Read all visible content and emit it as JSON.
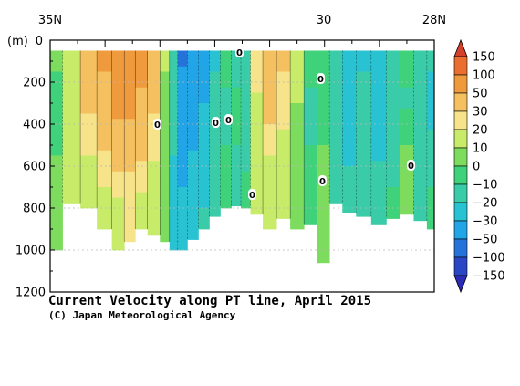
{
  "chart_data": {
    "type": "heatmap",
    "title": "Current Velocity along PT line, April 2015",
    "credit": "(C) Japan Meteorological Agency",
    "top_axis_labels": [
      "35N",
      "30",
      "28N"
    ],
    "y_unit": "(m)",
    "y_ticks": [
      0,
      200,
      400,
      600,
      800,
      1000,
      1200
    ],
    "ylim": [
      0,
      1200
    ],
    "colorbar": {
      "levels": [
        150,
        100,
        50,
        30,
        20,
        10,
        0,
        -10,
        -20,
        -30,
        -50,
        -100,
        -150
      ],
      "colors": [
        "#d5402a",
        "#ea6e2f",
        "#f09a3e",
        "#f4c060",
        "#f7e389",
        "#c8ec6a",
        "#7ddc5e",
        "#3fd27a",
        "#3acca8",
        "#28c2d2",
        "#21a5e6",
        "#2572d8",
        "#2a46c4",
        "#2a2ab4"
      ]
    },
    "contour_labels": [
      "0",
      "0",
      "0",
      "0",
      "0",
      "0",
      "0",
      "0"
    ],
    "columns": [
      {
        "lat": 34.95,
        "bottom": 1000,
        "v": [
          {
            "z": 0,
            "val": 5
          },
          {
            "z": 300,
            "val": -5
          },
          {
            "z": 800,
            "val": 5
          }
        ]
      },
      {
        "lat": 34.6,
        "bottom": 780,
        "v": [
          {
            "z": 0,
            "val": 15
          },
          {
            "z": 400,
            "val": 12
          },
          {
            "z": 700,
            "val": 10
          }
        ]
      },
      {
        "lat": 34.3,
        "bottom": 800,
        "v": [
          {
            "z": 0,
            "val": 45
          },
          {
            "z": 250,
            "val": 35
          },
          {
            "z": 550,
            "val": 20
          },
          {
            "z": 800,
            "val": 12
          }
        ]
      },
      {
        "lat": 34.0,
        "bottom": 900,
        "v": [
          {
            "z": 0,
            "val": 55
          },
          {
            "z": 300,
            "val": 45
          },
          {
            "z": 600,
            "val": 25
          },
          {
            "z": 900,
            "val": 10
          }
        ]
      },
      {
        "lat": 33.75,
        "bottom": 1000,
        "v": [
          {
            "z": 0,
            "val": 80
          },
          {
            "z": 200,
            "val": 65
          },
          {
            "z": 500,
            "val": 40
          },
          {
            "z": 800,
            "val": 15
          }
        ]
      },
      {
        "lat": 33.55,
        "bottom": 960,
        "v": [
          {
            "z": 0,
            "val": 110
          },
          {
            "z": 150,
            "val": 75
          },
          {
            "z": 450,
            "val": 40
          },
          {
            "z": 800,
            "val": 20
          }
        ]
      },
      {
        "lat": 33.35,
        "bottom": 900,
        "v": [
          {
            "z": 0,
            "val": 65
          },
          {
            "z": 300,
            "val": 45
          },
          {
            "z": 650,
            "val": 25
          },
          {
            "z": 900,
            "val": 10
          }
        ]
      },
      {
        "lat": 33.1,
        "bottom": 930,
        "v": [
          {
            "z": 0,
            "val": 40
          },
          {
            "z": 350,
            "val": 30
          },
          {
            "z": 700,
            "val": 15
          }
        ]
      },
      {
        "lat": 32.9,
        "bottom": 960,
        "v": [
          {
            "z": 0,
            "val": 12
          },
          {
            "z": 300,
            "val": 8
          },
          {
            "z": 900,
            "val": 5
          }
        ]
      },
      {
        "lat": 32.75,
        "bottom": 1000,
        "v": [
          {
            "z": 0,
            "val": -20
          },
          {
            "z": 300,
            "val": -15
          },
          {
            "z": 800,
            "val": -25
          }
        ]
      },
      {
        "lat": 32.6,
        "bottom": 1000,
        "v": [
          {
            "z": 0,
            "val": -60
          },
          {
            "z": 300,
            "val": -35
          },
          {
            "z": 700,
            "val": -30
          }
        ]
      },
      {
        "lat": 32.4,
        "bottom": 950,
        "v": [
          {
            "z": 0,
            "val": -45
          },
          {
            "z": 350,
            "val": -35
          },
          {
            "z": 700,
            "val": -25
          }
        ]
      },
      {
        "lat": 32.2,
        "bottom": 900,
        "v": [
          {
            "z": 0,
            "val": -40
          },
          {
            "z": 300,
            "val": -30
          },
          {
            "z": 800,
            "val": -20
          }
        ]
      },
      {
        "lat": 32.0,
        "bottom": 840,
        "v": [
          {
            "z": 0,
            "val": -25
          },
          {
            "z": 300,
            "val": -15
          },
          {
            "z": 700,
            "val": -12
          }
        ]
      },
      {
        "lat": 31.8,
        "bottom": 800,
        "v": [
          {
            "z": 0,
            "val": -5
          },
          {
            "z": 300,
            "val": -12
          },
          {
            "z": 700,
            "val": -8
          }
        ]
      },
      {
        "lat": 31.6,
        "bottom": 790,
        "v": [
          {
            "z": 0,
            "val": -15
          },
          {
            "z": 300,
            "val": -8
          },
          {
            "z": 700,
            "val": -12
          }
        ]
      },
      {
        "lat": 31.45,
        "bottom": 800,
        "v": [
          {
            "z": 0,
            "val": -10
          },
          {
            "z": 400,
            "val": -15
          },
          {
            "z": 700,
            "val": -8
          }
        ]
      },
      {
        "lat": 31.25,
        "bottom": 830,
        "v": [
          {
            "z": 0,
            "val": 25
          },
          {
            "z": 250,
            "val": 20
          },
          {
            "z": 650,
            "val": 12
          }
        ]
      },
      {
        "lat": 31.0,
        "bottom": 900,
        "v": [
          {
            "z": 0,
            "val": 50
          },
          {
            "z": 250,
            "val": 40
          },
          {
            "z": 550,
            "val": 20
          },
          {
            "z": 850,
            "val": 10
          }
        ]
      },
      {
        "lat": 30.75,
        "bottom": 850,
        "v": [
          {
            "z": 0,
            "val": 35
          },
          {
            "z": 300,
            "val": 25
          },
          {
            "z": 650,
            "val": 12
          }
        ]
      },
      {
        "lat": 30.5,
        "bottom": 900,
        "v": [
          {
            "z": 0,
            "val": 15
          },
          {
            "z": 300,
            "val": 10
          },
          {
            "z": 700,
            "val": 5
          }
        ]
      },
      {
        "lat": 30.25,
        "bottom": 880,
        "v": [
          {
            "z": 0,
            "val": -5
          },
          {
            "z": 300,
            "val": -12
          },
          {
            "z": 700,
            "val": -8
          }
        ]
      },
      {
        "lat": 30.02,
        "bottom": 1060,
        "v": [
          {
            "z": 0,
            "val": -8
          },
          {
            "z": 300,
            "val": -5
          },
          {
            "z": 700,
            "val": 5
          }
        ]
      },
      {
        "lat": 29.8,
        "bottom": 780,
        "v": [
          {
            "z": 0,
            "val": -10
          },
          {
            "z": 250,
            "val": -15
          },
          {
            "z": 600,
            "val": -20
          }
        ]
      },
      {
        "lat": 29.55,
        "bottom": 820,
        "v": [
          {
            "z": 0,
            "val": -20
          },
          {
            "z": 250,
            "val": -25
          },
          {
            "z": 600,
            "val": -20
          }
        ]
      },
      {
        "lat": 29.3,
        "bottom": 840,
        "v": [
          {
            "z": 0,
            "val": -25
          },
          {
            "z": 300,
            "val": -15
          },
          {
            "z": 700,
            "val": -20
          }
        ]
      },
      {
        "lat": 29.0,
        "bottom": 880,
        "v": [
          {
            "z": 0,
            "val": -20
          },
          {
            "z": 300,
            "val": -30
          },
          {
            "z": 700,
            "val": -15
          }
        ]
      },
      {
        "lat": 28.75,
        "bottom": 850,
        "v": [
          {
            "z": 0,
            "val": -10
          },
          {
            "z": 300,
            "val": -15
          },
          {
            "z": 700,
            "val": -10
          }
        ]
      },
      {
        "lat": 28.5,
        "bottom": 830,
        "v": [
          {
            "z": 0,
            "val": -5
          },
          {
            "z": 300,
            "val": -12
          },
          {
            "z": 600,
            "val": 5
          }
        ]
      },
      {
        "lat": 28.25,
        "bottom": 860,
        "v": [
          {
            "z": 0,
            "val": -10
          },
          {
            "z": 300,
            "val": -20
          },
          {
            "z": 700,
            "val": -15
          }
        ]
      },
      {
        "lat": 28.02,
        "bottom": 900,
        "v": [
          {
            "z": 0,
            "val": -15
          },
          {
            "z": 300,
            "val": -25
          },
          {
            "z": 700,
            "val": -10
          }
        ]
      }
    ]
  }
}
